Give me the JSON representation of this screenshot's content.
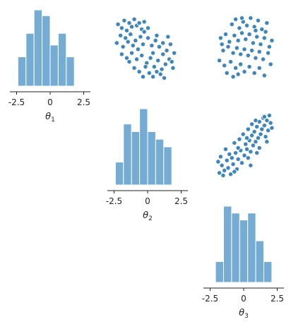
{
  "colors": {
    "bar_fill": "#74acd4",
    "bar_edge": "#ffffff",
    "point_fill": "#3d86bd",
    "point_edge": "#ffffff",
    "axis": "#222222"
  },
  "chart_data": [
    {
      "type": "bar",
      "panel": "theta1-histogram",
      "xlabel": "θ1",
      "x_range": [
        -3.0,
        3.0
      ],
      "xticks": [
        -2.5,
        0,
        2.5
      ],
      "xtick_labels": [
        "-2.5",
        "0",
        "2.5"
      ],
      "bin_edges": [
        -2.4,
        -1.8,
        -1.2,
        -0.6,
        0.0,
        0.6,
        1.2,
        1.8,
        2.4
      ],
      "counts": [
        5,
        9,
        13,
        12,
        7,
        9,
        5,
        0
      ],
      "values_note_free": true
    },
    {
      "type": "bar",
      "panel": "theta2-histogram",
      "xlabel": "θ2",
      "x_range": [
        -3.0,
        3.0
      ],
      "xticks": [
        -2.5,
        0,
        2.5
      ],
      "xtick_labels": [
        "-2.5",
        "0",
        "2.5"
      ],
      "bin_edges": [
        -2.4,
        -1.8,
        -1.2,
        -0.6,
        0.0,
        0.6,
        1.2,
        1.8,
        2.4
      ],
      "counts": [
        3,
        8,
        7,
        10,
        7,
        6,
        5,
        0
      ]
    },
    {
      "type": "bar",
      "panel": "theta3-histogram",
      "xlabel": "θ3",
      "x_range": [
        -3.0,
        3.0
      ],
      "xticks": [
        -2.5,
        0,
        2.5
      ],
      "xtick_labels": [
        "-2.5",
        "0",
        "2.5"
      ],
      "bin_edges": [
        -2.1,
        -1.5,
        -0.9,
        -0.3,
        0.3,
        0.9,
        1.5,
        2.1
      ],
      "counts": [
        3,
        11,
        10,
        9,
        10,
        6,
        3
      ]
    },
    {
      "type": "scatter",
      "panel": "theta1-vs-theta2",
      "x_name": "θ2",
      "y_name": "θ1",
      "points": [
        [
          -2.2,
          1.9
        ],
        [
          -1.9,
          1.6
        ],
        [
          -1.7,
          2.2
        ],
        [
          -1.5,
          1.4
        ],
        [
          -1.3,
          2.0
        ],
        [
          -1.1,
          1.7
        ],
        [
          -0.9,
          2.3
        ],
        [
          -0.7,
          1.8
        ],
        [
          -0.5,
          2.0
        ],
        [
          -0.3,
          1.5
        ],
        [
          -2.0,
          1.0
        ],
        [
          -1.6,
          0.8
        ],
        [
          -1.2,
          1.1
        ],
        [
          -0.8,
          0.6
        ],
        [
          -0.4,
          0.9
        ],
        [
          -0.1,
          1.3
        ],
        [
          -2.3,
          0.4
        ],
        [
          -1.8,
          0.1
        ],
        [
          -1.4,
          0.5
        ],
        [
          -1.0,
          0.2
        ],
        [
          -0.6,
          -0.1
        ],
        [
          -0.2,
          0.3
        ],
        [
          -1.9,
          -0.5
        ],
        [
          -1.5,
          -0.8
        ],
        [
          -1.1,
          -0.4
        ],
        [
          -0.7,
          -0.9
        ],
        [
          -0.3,
          -0.6
        ],
        [
          0.1,
          -1.2
        ],
        [
          0.4,
          -0.8
        ],
        [
          0.7,
          -1.5
        ],
        [
          1.0,
          -1.0
        ],
        [
          1.3,
          -1.7
        ],
        [
          1.6,
          -1.3
        ],
        [
          1.9,
          -0.9
        ],
        [
          2.2,
          -1.6
        ],
        [
          0.3,
          -2.0
        ],
        [
          0.6,
          -2.3
        ],
        [
          0.9,
          -1.9
        ],
        [
          1.2,
          -2.1
        ],
        [
          1.5,
          -2.4
        ],
        [
          0.5,
          0.2
        ],
        [
          0.8,
          0.6
        ],
        [
          1.1,
          0.1
        ],
        [
          1.4,
          0.4
        ],
        [
          1.7,
          -0.2
        ],
        [
          2.0,
          0.3
        ],
        [
          2.3,
          -0.4
        ],
        [
          0.2,
          0.8
        ],
        [
          0.9,
          1.0
        ],
        [
          1.8,
          0.9
        ],
        [
          -0.9,
          -1.6
        ],
        [
          -0.5,
          -1.9
        ],
        [
          -0.2,
          -2.3
        ],
        [
          0.0,
          -1.5
        ],
        [
          1.4,
          -0.5
        ],
        [
          2.1,
          -1.1
        ],
        [
          -1.3,
          -1.1
        ],
        [
          0.6,
          -0.4
        ],
        [
          -0.1,
          2.1
        ],
        [
          0.2,
          1.6
        ]
      ]
    },
    {
      "type": "scatter",
      "panel": "theta1-vs-theta3",
      "x_name": "θ3",
      "y_name": "θ1",
      "points": [
        [
          -1.0,
          1.9
        ],
        [
          -0.7,
          2.3
        ],
        [
          -0.4,
          1.6
        ],
        [
          -0.1,
          2.1
        ],
        [
          0.2,
          1.8
        ],
        [
          0.5,
          2.4
        ],
        [
          0.8,
          1.7
        ],
        [
          1.1,
          2.2
        ],
        [
          1.4,
          1.5
        ],
        [
          1.8,
          2.0
        ],
        [
          -1.9,
          0.8
        ],
        [
          -1.5,
          1.1
        ],
        [
          -1.2,
          0.5
        ],
        [
          -0.8,
          1.0
        ],
        [
          -0.5,
          0.6
        ],
        [
          -0.2,
          1.2
        ],
        [
          0.1,
          0.7
        ],
        [
          0.4,
          1.1
        ],
        [
          0.7,
          0.4
        ],
        [
          1.0,
          0.9
        ],
        [
          1.3,
          0.3
        ],
        [
          1.6,
          0.8
        ],
        [
          2.0,
          0.1
        ],
        [
          -1.7,
          -0.2
        ],
        [
          -1.3,
          0.1
        ],
        [
          -0.9,
          -0.4
        ],
        [
          -0.6,
          0.0
        ],
        [
          -0.3,
          -0.5
        ],
        [
          0.0,
          -0.1
        ],
        [
          0.3,
          -0.6
        ],
        [
          0.6,
          -0.2
        ],
        [
          0.9,
          -0.8
        ],
        [
          1.2,
          -0.3
        ],
        [
          1.5,
          -0.9
        ],
        [
          1.9,
          -0.4
        ],
        [
          -2.0,
          -1.0
        ],
        [
          -1.6,
          -1.4
        ],
        [
          -1.1,
          -1.1
        ],
        [
          -0.7,
          -1.6
        ],
        [
          -0.3,
          -1.3
        ],
        [
          0.0,
          -1.9
        ],
        [
          0.4,
          -1.5
        ],
        [
          0.8,
          -2.0
        ],
        [
          1.2,
          -1.6
        ],
        [
          1.6,
          -2.2
        ],
        [
          -1.4,
          -2.0
        ],
        [
          -0.9,
          -2.3
        ],
        [
          -0.5,
          -2.1
        ],
        [
          2.1,
          -1.3
        ],
        [
          2.2,
          0.6
        ],
        [
          -1.8,
          0.3
        ],
        [
          1.7,
          1.3
        ],
        [
          -0.2,
          2.4
        ],
        [
          0.9,
          1.4
        ]
      ]
    },
    {
      "type": "scatter",
      "panel": "theta2-vs-theta3",
      "x_name": "θ3",
      "y_name": "θ2",
      "points": [
        [
          -2.0,
          -2.2
        ],
        [
          -1.8,
          -1.6
        ],
        [
          -1.6,
          -2.0
        ],
        [
          -1.4,
          -1.2
        ],
        [
          -1.3,
          -1.8
        ],
        [
          -1.1,
          -2.3
        ],
        [
          -1.0,
          -1.0
        ],
        [
          -0.9,
          -1.5
        ],
        [
          -0.7,
          -0.6
        ],
        [
          -0.6,
          -1.9
        ],
        [
          -0.5,
          -1.1
        ],
        [
          -0.3,
          -0.4
        ],
        [
          -0.2,
          -1.4
        ],
        [
          0.0,
          -0.8
        ],
        [
          0.1,
          0.1
        ],
        [
          0.2,
          -0.3
        ],
        [
          0.3,
          -1.0
        ],
        [
          0.4,
          0.4
        ],
        [
          0.5,
          -0.5
        ],
        [
          0.6,
          0.8
        ],
        [
          0.7,
          0.0
        ],
        [
          0.8,
          1.1
        ],
        [
          0.9,
          0.3
        ],
        [
          1.0,
          1.5
        ],
        [
          1.1,
          0.6
        ],
        [
          1.2,
          1.9
        ],
        [
          1.3,
          0.9
        ],
        [
          1.4,
          1.3
        ],
        [
          1.5,
          2.2
        ],
        [
          1.6,
          1.6
        ],
        [
          1.7,
          0.7
        ],
        [
          1.8,
          2.0
        ],
        [
          1.9,
          1.2
        ],
        [
          2.0,
          2.4
        ],
        [
          2.1,
          1.8
        ],
        [
          2.2,
          1.4
        ],
        [
          -1.9,
          -0.9
        ],
        [
          -1.5,
          -0.3
        ],
        [
          -1.2,
          -0.7
        ],
        [
          -0.8,
          0.2
        ],
        [
          -0.4,
          0.5
        ],
        [
          -0.1,
          0.9
        ],
        [
          0.3,
          1.3
        ],
        [
          0.6,
          1.7
        ],
        [
          0.9,
          2.0
        ],
        [
          -1.7,
          -2.4
        ],
        [
          -0.8,
          -2.1
        ],
        [
          0.5,
          -1.6
        ],
        [
          1.2,
          -0.2
        ],
        [
          1.8,
          0.3
        ],
        [
          -2.1,
          -1.3
        ],
        [
          -0.5,
          -0.2
        ],
        [
          0.2,
          0.6
        ],
        [
          1.0,
          -0.6
        ],
        [
          1.6,
          2.3
        ]
      ]
    }
  ]
}
